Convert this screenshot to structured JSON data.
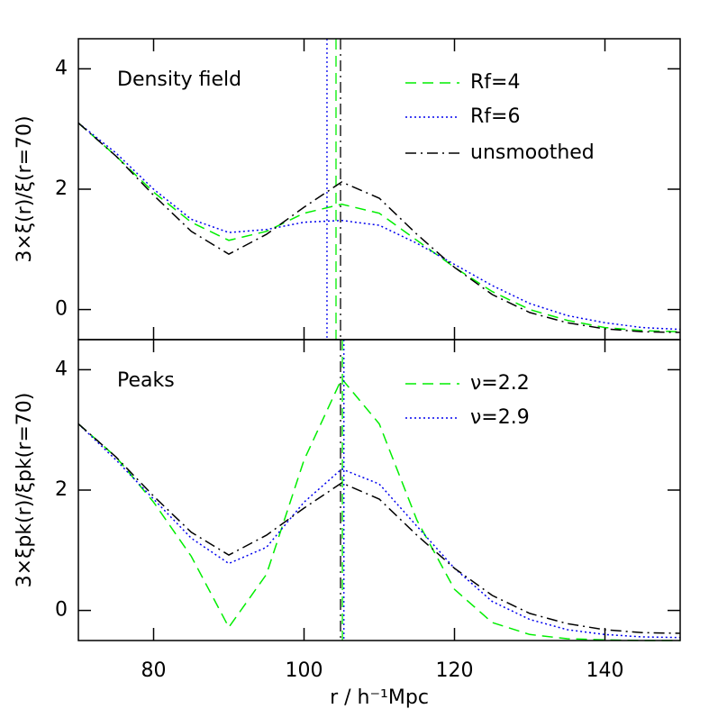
{
  "chart_data": [
    {
      "type": "line",
      "annotation": "Density field",
      "ylabel": "3×ξ(r)/ξ(r=70)",
      "xlim": [
        70,
        150
      ],
      "xticks": [
        80,
        100,
        120,
        140
      ],
      "ylim": [
        -0.5,
        4.5
      ],
      "yticks": [
        0,
        2,
        4
      ],
      "x": [
        70,
        75,
        80,
        85,
        90,
        95,
        100,
        105,
        110,
        115,
        120,
        125,
        130,
        135,
        140,
        145,
        150
      ],
      "series": [
        {
          "name": "Rf=4",
          "color": "#00ee00",
          "style": "dashed",
          "vline": 104.25,
          "values": [
            3.1,
            2.55,
            1.95,
            1.45,
            1.15,
            1.3,
            1.6,
            1.75,
            1.6,
            1.15,
            0.7,
            0.3,
            0.0,
            -0.18,
            -0.3,
            -0.35,
            -0.37
          ]
        },
        {
          "name": "Rf=6",
          "color": "#0000ee",
          "style": "dotted",
          "vline": 103.05,
          "values": [
            3.1,
            2.6,
            2.0,
            1.5,
            1.28,
            1.33,
            1.45,
            1.48,
            1.4,
            1.1,
            0.75,
            0.4,
            0.1,
            -0.1,
            -0.22,
            -0.3,
            -0.33
          ]
        },
        {
          "name": "unsmoothed",
          "color": "#000000",
          "style": "dashdot",
          "vline": 104.85,
          "values": [
            3.1,
            2.55,
            1.9,
            1.3,
            0.92,
            1.25,
            1.7,
            2.12,
            1.85,
            1.25,
            0.7,
            0.25,
            -0.05,
            -0.22,
            -0.32,
            -0.37,
            -0.38
          ]
        }
      ]
    },
    {
      "type": "line",
      "annotation": "Peaks",
      "ylabel": "3×ξpk(r)/ξpk(r=70)",
      "xlabel": "r / h⁻¹Mpc",
      "xlim": [
        70,
        150
      ],
      "xticks": [
        80,
        100,
        120,
        140
      ],
      "ylim": [
        -0.5,
        4.5
      ],
      "yticks": [
        0,
        2,
        4
      ],
      "x": [
        70,
        75,
        80,
        85,
        90,
        95,
        100,
        105,
        110,
        115,
        120,
        125,
        130,
        135,
        140,
        145,
        150
      ],
      "series": [
        {
          "name": "ν=2.2",
          "color": "#00ee00",
          "style": "dashed",
          "vline": 105.1,
          "values": [
            3.1,
            2.55,
            1.8,
            0.9,
            -0.28,
            0.6,
            2.5,
            3.85,
            3.1,
            1.5,
            0.35,
            -0.2,
            -0.4,
            -0.47,
            -0.49,
            -0.5,
            -0.5
          ]
        },
        {
          "name": "ν=2.9",
          "color": "#0000ee",
          "style": "dotted",
          "vline": 105.3,
          "values": [
            3.1,
            2.5,
            1.85,
            1.2,
            0.78,
            1.05,
            1.8,
            2.35,
            2.1,
            1.4,
            0.7,
            0.15,
            -0.15,
            -0.32,
            -0.4,
            -0.44,
            -0.45
          ]
        },
        {
          "color": "#000000",
          "style": "dashdot",
          "vline": 104.85,
          "values": [
            3.1,
            2.55,
            1.9,
            1.3,
            0.92,
            1.25,
            1.7,
            2.12,
            1.85,
            1.25,
            0.7,
            0.25,
            -0.05,
            -0.22,
            -0.32,
            -0.37,
            -0.38
          ]
        }
      ]
    }
  ]
}
